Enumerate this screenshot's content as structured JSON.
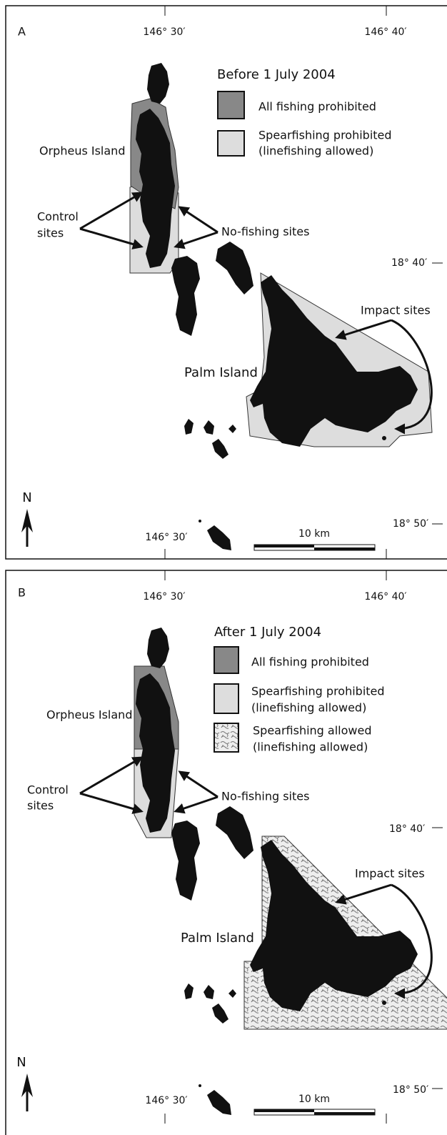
{
  "panels": [
    {
      "label": "A",
      "top_lon_labels": [
        "146° 30′",
        "146° 40′"
      ],
      "legend_title": "Before 1 July 2004",
      "legend": [
        {
          "lines": [
            "All fishing prohibited"
          ]
        },
        {
          "lines": [
            "Spearfishing prohibited",
            "(linefishing allowed)"
          ]
        }
      ],
      "orpheus": "Orpheus Island",
      "palm": "Palm Island",
      "control_sites": [
        "Control",
        "sites"
      ],
      "no_fishing_sites": "No-fishing sites",
      "impact_sites": "Impact sites",
      "lat_labels": [
        "18° 40′",
        "18° 50′"
      ],
      "bottom_lon_label": "146° 30′",
      "north": "N",
      "scale": "10 km"
    },
    {
      "label": "B",
      "top_lon_labels": [
        "146° 30′",
        "146° 40′"
      ],
      "legend_title": "After 1 July 2004",
      "legend": [
        {
          "lines": [
            "All fishing prohibited"
          ]
        },
        {
          "lines": [
            "Spearfishing prohibited",
            "(linefishing allowed)"
          ]
        },
        {
          "lines": [
            "Spearfishing allowed",
            "(linefishing allowed)"
          ]
        }
      ],
      "orpheus": "Orpheus Island",
      "palm": "Palm Island",
      "control_sites": [
        "Control",
        "sites"
      ],
      "no_fishing_sites": "No-fishing sites",
      "impact_sites": "Impact sites",
      "lat_labels": [
        "18° 40′",
        "18° 50′"
      ],
      "bottom_lon_label": "146° 30′",
      "north": "N",
      "scale": "10 km"
    }
  ]
}
